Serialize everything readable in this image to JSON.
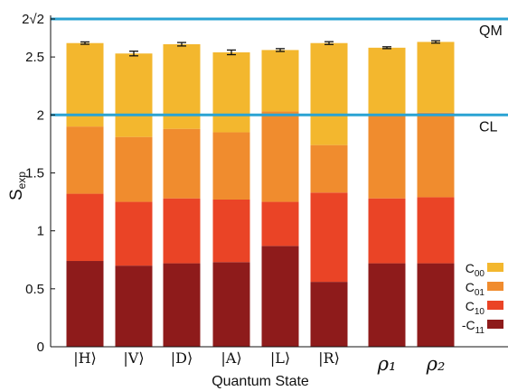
{
  "chart_data": {
    "type": "bar",
    "stacked": true,
    "categories": [
      "|H⟩",
      "|V⟩",
      "|D⟩",
      "|A⟩",
      "|L⟩",
      "|R⟩",
      "ρ₁",
      "ρ₂"
    ],
    "series": [
      {
        "name": "-C11",
        "name_main": "-C",
        "name_sub": "11",
        "color": "#8e1b1b",
        "values": [
          0.74,
          0.7,
          0.72,
          0.73,
          0.87,
          0.56,
          0.72,
          0.72
        ]
      },
      {
        "name": "C10",
        "name_main": "C",
        "name_sub": "10",
        "color": "#ea4426",
        "values": [
          0.58,
          0.55,
          0.56,
          0.54,
          0.38,
          0.77,
          0.56,
          0.57
        ]
      },
      {
        "name": "C01",
        "name_main": "C",
        "name_sub": "01",
        "color": "#f08c2e",
        "values": [
          0.58,
          0.56,
          0.6,
          0.58,
          0.78,
          0.41,
          0.73,
          0.73
        ]
      },
      {
        "name": "C00",
        "name_main": "C",
        "name_sub": "00",
        "color": "#f3b72e",
        "values": [
          0.72,
          0.72,
          0.73,
          0.69,
          0.53,
          0.88,
          0.57,
          0.61
        ]
      }
    ],
    "totals": [
      2.62,
      2.53,
      2.61,
      2.54,
      2.56,
      2.62,
      2.58,
      2.63
    ],
    "errors": [
      0.01,
      0.02,
      0.015,
      0.02,
      0.012,
      0.012,
      0.008,
      0.01
    ],
    "reference_lines": [
      {
        "label": "QM",
        "value": 2.828,
        "color": "#2aa3d3"
      },
      {
        "label": "CL",
        "value": 2.0,
        "color": "#2aa3d3"
      }
    ],
    "ylim": [
      0,
      2.828
    ],
    "yticks": [
      {
        "value": 0,
        "label": "0"
      },
      {
        "value": 0.5,
        "label": "0.5"
      },
      {
        "value": 1,
        "label": "1"
      },
      {
        "value": 1.5,
        "label": "1.5"
      },
      {
        "value": 2,
        "label": "2"
      },
      {
        "value": 2.5,
        "label": "2.5"
      },
      {
        "value": 2.828,
        "label": "2√2"
      }
    ],
    "xlabel": "Quantum State",
    "ylabel_main": "S",
    "ylabel_sub": "exp",
    "legend_position": "bottom-right",
    "grid": false
  }
}
